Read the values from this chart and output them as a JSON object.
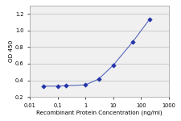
{
  "x": [
    0.03,
    0.1,
    0.2,
    1.0,
    3.0,
    10.0,
    50.0,
    200.0
  ],
  "y": [
    0.33,
    0.33,
    0.335,
    0.345,
    0.415,
    0.58,
    0.86,
    1.13
  ],
  "line_color": "#5566bb",
  "marker_color": "#2233aa",
  "marker": "D",
  "marker_size": 2.8,
  "line_width": 0.8,
  "xlabel": "Recombinant Protein Concentration (ng/ml)",
  "ylabel": "OD 450",
  "xlim": [
    0.01,
    1000
  ],
  "ylim": [
    0.2,
    1.3
  ],
  "yticks": [
    0.2,
    0.4,
    0.6,
    0.8,
    1.0,
    1.2
  ],
  "ytick_labels": [
    "0.2",
    "0.4",
    "0.6",
    "0.8",
    "1.0",
    "1.2"
  ],
  "xticks": [
    0.01,
    0.1,
    1,
    10,
    100,
    1000
  ],
  "xtick_labels": [
    "0.01",
    "0.1",
    "1",
    "10",
    "100",
    "1000"
  ],
  "xlabel_fontsize": 5.2,
  "ylabel_fontsize": 5.2,
  "tick_fontsize": 4.8,
  "background_color": "#ffffff",
  "axes_bg_color": "#f0f0f0",
  "grid_color": "#bbbbbb",
  "spine_color": "#999999"
}
